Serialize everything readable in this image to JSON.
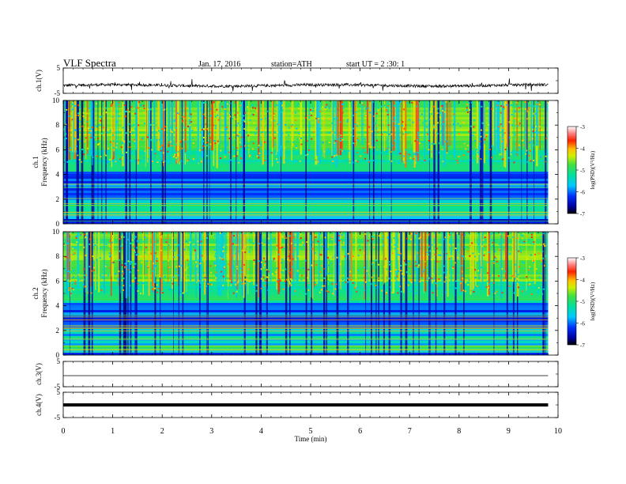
{
  "header": {
    "title": "VLF  Spectra",
    "date": "Jan. 17, 2016",
    "station": "station=ATH",
    "start": "start  UT  =   2  :30: 1"
  },
  "chart_data": {
    "type": "heatmap",
    "xlabel": "Time  (min)",
    "xlim": [
      0,
      10
    ],
    "xticks": [
      0,
      1,
      2,
      3,
      4,
      5,
      6,
      7,
      8,
      9,
      10
    ],
    "data_end_min": 9.8,
    "panels": [
      {
        "name": "ch.1(V)",
        "type": "line",
        "ylabel": "ch.1(V)",
        "ylim": [
          -5,
          5
        ],
        "yticks": [
          "5",
          "-5"
        ],
        "signal": "noisy"
      },
      {
        "name": "ch.1",
        "type": "heatmap",
        "ylabel_top": "ch.1",
        "ylabel": "Frequency  (kHz)",
        "ylim": [
          0,
          10
        ],
        "yticks": [
          "10",
          "8",
          "6",
          "4",
          "2",
          "0"
        ],
        "colorbar": {
          "label": "log(PSD)(V²/Hz)",
          "range": [
            -7,
            -3
          ],
          "ticks": [
            "-3",
            "-4",
            "-5",
            "-6",
            "-7"
          ]
        }
      },
      {
        "name": "ch.2",
        "type": "heatmap",
        "ylabel_top": "ch.2",
        "ylabel": "Frequency  (kHz)",
        "ylim": [
          0,
          10
        ],
        "yticks": [
          "10",
          "8",
          "6",
          "4",
          "2",
          "0"
        ],
        "colorbar": {
          "label": "log(PSD)(V²/Hz)",
          "range": [
            -7,
            -3
          ],
          "ticks": [
            "-3",
            "-4",
            "-5",
            "-6",
            "-7"
          ]
        }
      },
      {
        "name": "ch.3(V)",
        "type": "line",
        "ylabel": "ch.3(V)",
        "ylim": [
          -5,
          5
        ],
        "yticks": [
          "5",
          "-5"
        ],
        "signal": "flat"
      },
      {
        "name": "ch.4(V)",
        "type": "line",
        "ylabel": "ch.4(V)",
        "ylim": [
          -5,
          5
        ],
        "yticks": [
          "5",
          "-5"
        ],
        "signal": "thick"
      }
    ]
  }
}
